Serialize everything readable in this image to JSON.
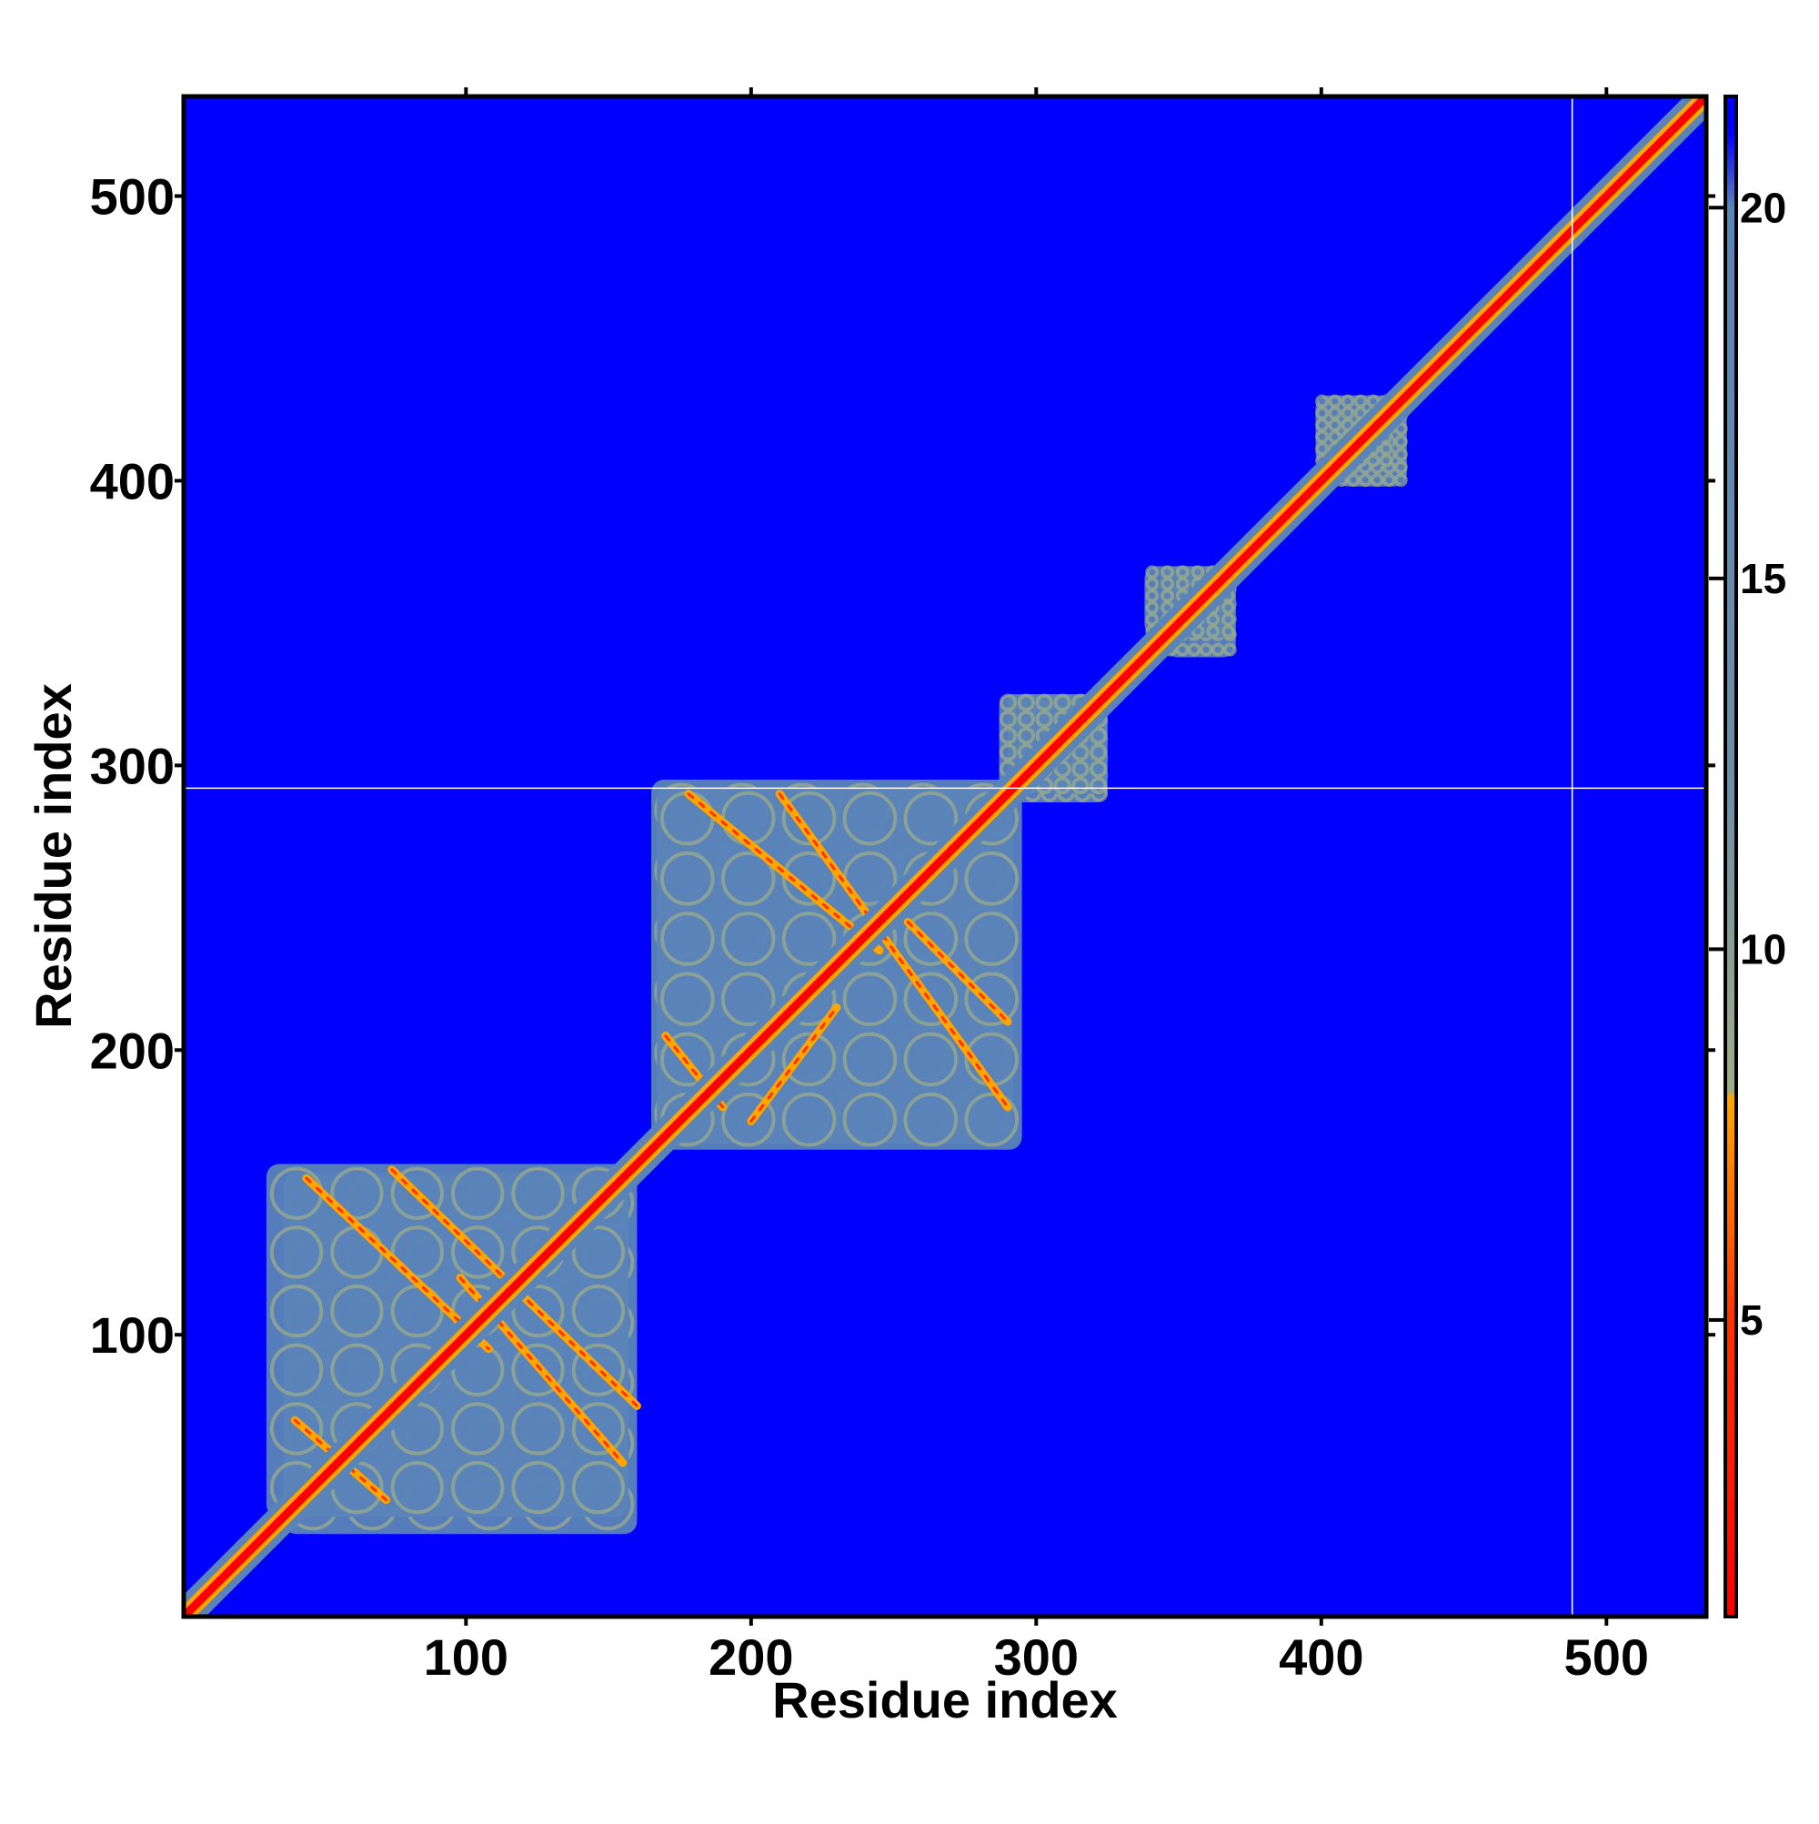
{
  "chart_data": {
    "type": "heatmap",
    "title": "",
    "xlabel": "Residue index",
    "ylabel": "Residue index",
    "xlim": [
      1,
      535
    ],
    "ylim": [
      1,
      535
    ],
    "x_ticks": [
      100,
      200,
      300,
      400,
      500
    ],
    "x_tick_labels": [
      "100",
      "200",
      "300",
      "400",
      "500"
    ],
    "y_ticks": [
      100,
      200,
      300,
      400,
      500
    ],
    "y_tick_labels": [
      "100",
      "200",
      "300",
      "400",
      "500"
    ],
    "colorbar": {
      "range": [
        1,
        21.5
      ],
      "ticks": [
        5,
        10,
        15,
        20
      ],
      "tick_labels": [
        "5",
        "10",
        "15",
        "20"
      ],
      "stops": [
        {
          "value": 1,
          "color": "#ff0000"
        },
        {
          "value": 5,
          "color": "#ff3300"
        },
        {
          "value": 8,
          "color": "#ffa500"
        },
        {
          "value": 8.1,
          "color": "#9fae87"
        },
        {
          "value": 12,
          "color": "#6f8fa5"
        },
        {
          "value": 20,
          "color": "#5a84b8"
        },
        {
          "value": 21,
          "color": "#0000ff"
        }
      ]
    },
    "grid": false,
    "background_color": "#0000ff",
    "reference_lines": {
      "vertical_x": 488,
      "horizontal_y": 292
    },
    "contact_blocks": [
      {
        "x": [
          36,
          160
        ],
        "y": [
          30,
          157
        ]
      },
      {
        "x": [
          165,
          292
        ],
        "y": [
          167,
          295
        ]
      },
      {
        "x": [
          290,
          325
        ],
        "y": [
          287,
          325
        ]
      },
      {
        "x": [
          345,
          370
        ],
        "y": [
          338,
          370
        ]
      },
      {
        "x": [
          405,
          430
        ],
        "y": [
          398,
          425
        ]
      }
    ],
    "off_diagonal_bands": [
      {
        "x": [
          44,
          108
        ],
        "y": [
          155,
          95
        ]
      },
      {
        "x": [
          74,
          160
        ],
        "y": [
          158,
          75
        ]
      },
      {
        "x": [
          98,
          155
        ],
        "y": [
          120,
          55
        ]
      },
      {
        "x": [
          40,
          72
        ],
        "y": [
          70,
          42
        ]
      },
      {
        "x": [
          178,
          245
        ],
        "y": [
          290,
          235
        ]
      },
      {
        "x": [
          210,
          290
        ],
        "y": [
          290,
          180
        ]
      },
      {
        "x": [
          170,
          190
        ],
        "y": [
          205,
          180
        ]
      },
      {
        "x": [
          200,
          230
        ],
        "y": [
          175,
          215
        ]
      },
      {
        "x": [
          255,
          290
        ],
        "y": [
          245,
          210
        ]
      }
    ]
  }
}
